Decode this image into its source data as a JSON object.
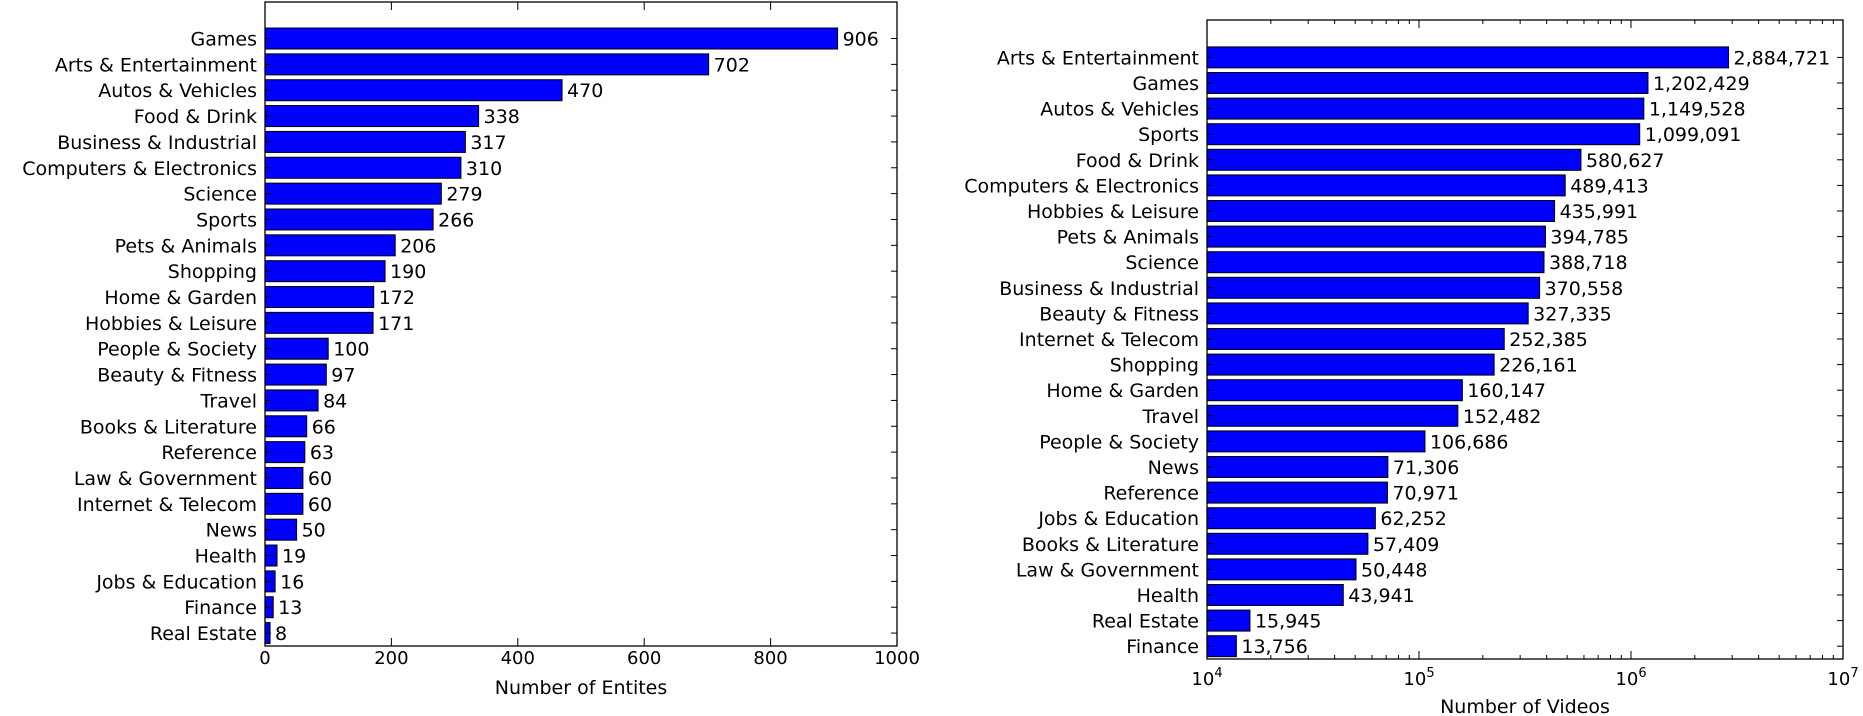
{
  "chart_data": [
    {
      "type": "bar",
      "orientation": "horizontal",
      "categories": [
        "Games",
        "Arts & Entertainment",
        "Autos & Vehicles",
        "Food & Drink",
        "Business & Industrial",
        "Computers & Electronics",
        "Science",
        "Sports",
        "Pets & Animals",
        "Shopping",
        "Home & Garden",
        "Hobbies & Leisure",
        "People & Society",
        "Beauty & Fitness",
        "Travel",
        "Books & Literature",
        "Reference",
        "Law & Government",
        "Internet & Telecom",
        "News",
        "Health",
        "Jobs & Education",
        "Finance",
        "Real Estate"
      ],
      "values": [
        906,
        702,
        470,
        338,
        317,
        310,
        279,
        266,
        206,
        190,
        172,
        171,
        100,
        97,
        84,
        66,
        63,
        60,
        60,
        50,
        19,
        16,
        13,
        8
      ],
      "value_labels": [
        "906",
        "702",
        "470",
        "338",
        "317",
        "310",
        "279",
        "266",
        "206",
        "190",
        "172",
        "171",
        "100",
        "97",
        "84",
        "66",
        "63",
        "60",
        "60",
        "50",
        "19",
        "16",
        "13",
        "8"
      ],
      "xlabel": "Number of Entites",
      "ylabel": "",
      "xscale": "linear",
      "xlim": [
        0,
        1000
      ],
      "xticks": [
        0,
        200,
        400,
        600,
        800,
        1000
      ],
      "xtick_labels": [
        "0",
        "200",
        "400",
        "600",
        "800",
        "1000"
      ],
      "grid": false,
      "bar_color": "#0000ff"
    },
    {
      "type": "bar",
      "orientation": "horizontal",
      "categories": [
        "Arts & Entertainment",
        "Games",
        "Autos & Vehicles",
        "Sports",
        "Food & Drink",
        "Computers & Electronics",
        "Hobbies & Leisure",
        "Pets & Animals",
        "Science",
        "Business & Industrial",
        "Beauty & Fitness",
        "Internet & Telecom",
        "Shopping",
        "Home & Garden",
        "Travel",
        "People & Society",
        "News",
        "Reference",
        "Jobs & Education",
        "Books & Literature",
        "Law & Government",
        "Health",
        "Real Estate",
        "Finance"
      ],
      "values": [
        2884721,
        1202429,
        1149528,
        1099091,
        580627,
        489413,
        435991,
        394785,
        388718,
        370558,
        327335,
        252385,
        226161,
        160147,
        152482,
        106686,
        71306,
        70971,
        62252,
        57409,
        50448,
        43941,
        15945,
        13756
      ],
      "value_labels": [
        "2,884,721",
        "1,202,429",
        "1,149,528",
        "1,099,091",
        "580,627",
        "489,413",
        "435,991",
        "394,785",
        "388,718",
        "370,558",
        "327,335",
        "252,385",
        "226,161",
        "160,147",
        "152,482",
        "106,686",
        "71,306",
        "70,971",
        "62,252",
        "57,409",
        "50,448",
        "43,941",
        "15,945",
        "13,756"
      ],
      "xlabel": "Number of Videos",
      "ylabel": "",
      "xscale": "log",
      "xlim": [
        10000,
        10000000
      ],
      "xticks": [
        10000,
        100000,
        1000000,
        10000000
      ],
      "xtick_base": "10",
      "xtick_exponents": [
        "4",
        "5",
        "6",
        "7"
      ],
      "grid": false,
      "bar_color": "#0000ff"
    }
  ]
}
